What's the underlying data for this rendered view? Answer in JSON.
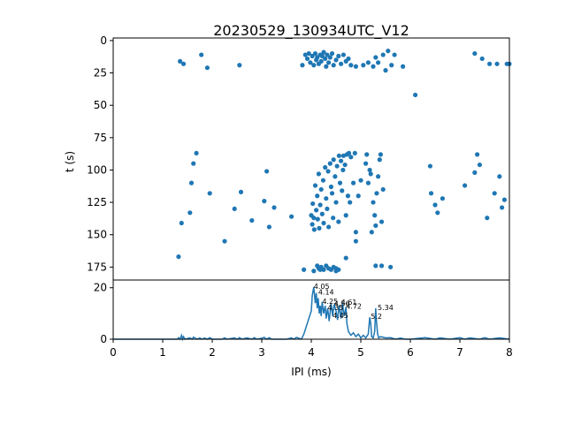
{
  "chart_data": [
    {
      "type": "scatter",
      "title": "20230529_130934UTC_V12",
      "xlabel": "",
      "ylabel": "t (s)",
      "xlim": [
        0,
        8
      ],
      "ylim": [
        185,
        -2
      ],
      "y_inverted": true,
      "y_ticks": [
        0,
        25,
        50,
        75,
        100,
        125,
        150,
        175
      ],
      "y_tick_labels": [
        "0",
        "25",
        "50",
        "75",
        "100",
        "125",
        "150",
        "175"
      ],
      "x_ticks_shown": false,
      "grid": false,
      "color": "#1f77b4",
      "points": [
        [
          1.35,
          16
        ],
        [
          1.42,
          18
        ],
        [
          1.78,
          11
        ],
        [
          1.9,
          21
        ],
        [
          2.55,
          19
        ],
        [
          3.82,
          19
        ],
        [
          3.88,
          11
        ],
        [
          3.92,
          14
        ],
        [
          3.95,
          10
        ],
        [
          3.98,
          17
        ],
        [
          4.02,
          12
        ],
        [
          4.05,
          19
        ],
        [
          4.08,
          10
        ],
        [
          4.1,
          15
        ],
        [
          4.12,
          13
        ],
        [
          4.15,
          18
        ],
        [
          4.18,
          11
        ],
        [
          4.2,
          16
        ],
        [
          4.22,
          12
        ],
        [
          4.25,
          9
        ],
        [
          4.28,
          14
        ],
        [
          4.3,
          20
        ],
        [
          4.32,
          11
        ],
        [
          4.35,
          17
        ],
        [
          4.38,
          13
        ],
        [
          4.42,
          10
        ],
        [
          4.45,
          19
        ],
        [
          4.5,
          15
        ],
        [
          4.55,
          12
        ],
        [
          4.6,
          18
        ],
        [
          4.65,
          11
        ],
        [
          4.7,
          16
        ],
        [
          4.75,
          14
        ],
        [
          4.8,
          19
        ],
        [
          4.9,
          20
        ],
        [
          5.05,
          19
        ],
        [
          5.15,
          17
        ],
        [
          5.25,
          20
        ],
        [
          5.3,
          13
        ],
        [
          5.35,
          17
        ],
        [
          5.45,
          11
        ],
        [
          5.5,
          23
        ],
        [
          5.55,
          8
        ],
        [
          5.62,
          19
        ],
        [
          5.68,
          11
        ],
        [
          5.85,
          20
        ],
        [
          6.1,
          42
        ],
        [
          7.3,
          10
        ],
        [
          7.45,
          14
        ],
        [
          7.6,
          18
        ],
        [
          7.75,
          18
        ],
        [
          7.95,
          18
        ],
        [
          8.0,
          18
        ],
        [
          1.32,
          167
        ],
        [
          1.38,
          141
        ],
        [
          1.55,
          133
        ],
        [
          1.58,
          110
        ],
        [
          1.62,
          95
        ],
        [
          1.68,
          87
        ],
        [
          1.95,
          118
        ],
        [
          2.25,
          155
        ],
        [
          2.45,
          130
        ],
        [
          2.58,
          117
        ],
        [
          2.8,
          139
        ],
        [
          3.05,
          124
        ],
        [
          3.1,
          101
        ],
        [
          3.15,
          144
        ],
        [
          3.25,
          129
        ],
        [
          3.6,
          136
        ],
        [
          3.85,
          177
        ],
        [
          4.0,
          135
        ],
        [
          4.02,
          142
        ],
        [
          4.03,
          126
        ],
        [
          4.05,
          137
        ],
        [
          4.06,
          146
        ],
        [
          4.08,
          112
        ],
        [
          4.1,
          131
        ],
        [
          4.12,
          120
        ],
        [
          4.13,
          138
        ],
        [
          4.15,
          103
        ],
        [
          4.16,
          145
        ],
        [
          4.18,
          127
        ],
        [
          4.2,
          115
        ],
        [
          4.22,
          134
        ],
        [
          4.24,
          108
        ],
        [
          4.25,
          141
        ],
        [
          4.28,
          98
        ],
        [
          4.3,
          122
        ],
        [
          4.32,
          130
        ],
        [
          4.34,
          101
        ],
        [
          4.35,
          144
        ],
        [
          4.38,
          95
        ],
        [
          4.4,
          113
        ],
        [
          4.42,
          118
        ],
        [
          4.44,
          137
        ],
        [
          4.45,
          92
        ],
        [
          4.48,
          105
        ],
        [
          4.5,
          125
        ],
        [
          4.52,
          97
        ],
        [
          4.55,
          140
        ],
        [
          4.56,
          89
        ],
        [
          4.58,
          110
        ],
        [
          4.6,
          93
        ],
        [
          4.62,
          116
        ],
        [
          4.64,
          100
        ],
        [
          4.65,
          89
        ],
        [
          4.68,
          96
        ],
        [
          4.7,
          135
        ],
        [
          4.72,
          88
        ],
        [
          4.74,
          120
        ],
        [
          4.76,
          87
        ],
        [
          4.78,
          125
        ],
        [
          4.8,
          90
        ],
        [
          4.85,
          110
        ],
        [
          4.88,
          87
        ],
        [
          4.9,
          155
        ],
        [
          4.05,
          178
        ],
        [
          4.12,
          174
        ],
        [
          4.15,
          176
        ],
        [
          4.18,
          177
        ],
        [
          4.2,
          175
        ],
        [
          4.25,
          177
        ],
        [
          4.3,
          174
        ],
        [
          4.35,
          176
        ],
        [
          4.4,
          177
        ],
        [
          4.45,
          175
        ],
        [
          4.5,
          176
        ],
        [
          4.55,
          177
        ],
        [
          4.9,
          148
        ],
        [
          4.95,
          120
        ],
        [
          5.0,
          108
        ],
        [
          5.1,
          95
        ],
        [
          5.12,
          88
        ],
        [
          5.15,
          110
        ],
        [
          5.18,
          100
        ],
        [
          5.2,
          103
        ],
        [
          5.22,
          148
        ],
        [
          5.25,
          125
        ],
        [
          5.28,
          135
        ],
        [
          5.3,
          143
        ],
        [
          5.32,
          118
        ],
        [
          5.35,
          105
        ],
        [
          5.38,
          92
        ],
        [
          5.4,
          88
        ],
        [
          5.42,
          140
        ],
        [
          5.45,
          115
        ],
        [
          5.3,
          174
        ],
        [
          5.42,
          174
        ],
        [
          5.6,
          175
        ],
        [
          4.5,
          178
        ],
        [
          4.7,
          168
        ],
        [
          6.4,
          97
        ],
        [
          6.42,
          118
        ],
        [
          6.5,
          127
        ],
        [
          6.55,
          133
        ],
        [
          6.65,
          122
        ],
        [
          7.1,
          112
        ],
        [
          7.3,
          102
        ],
        [
          7.35,
          88
        ],
        [
          7.4,
          96
        ],
        [
          7.55,
          137
        ],
        [
          7.7,
          118
        ],
        [
          7.8,
          105
        ],
        [
          7.85,
          129
        ],
        [
          7.9,
          123
        ]
      ]
    },
    {
      "type": "line",
      "xlabel": "IPI (ms)",
      "ylabel": "",
      "xlim": [
        0,
        8
      ],
      "ylim": [
        0,
        23
      ],
      "x_ticks": [
        0,
        1,
        2,
        3,
        4,
        5,
        6,
        7,
        8
      ],
      "x_tick_labels": [
        "0",
        "1",
        "2",
        "3",
        "4",
        "5",
        "6",
        "7",
        "8"
      ],
      "y_ticks": [
        0,
        20
      ],
      "y_tick_labels": [
        "0",
        "20"
      ],
      "color": "#1f77b4",
      "x": [
        0,
        1.0,
        1.3,
        1.32,
        1.35,
        1.38,
        1.4,
        1.42,
        1.45,
        1.55,
        1.6,
        1.62,
        1.7,
        1.75,
        1.78,
        1.85,
        1.9,
        1.95,
        2.0,
        2.2,
        2.25,
        2.3,
        2.45,
        2.5,
        2.55,
        2.6,
        2.7,
        2.8,
        2.85,
        2.9,
        3.0,
        3.05,
        3.1,
        3.15,
        3.2,
        3.3,
        3.5,
        3.6,
        3.65,
        3.7,
        3.8,
        3.85,
        3.9,
        3.95,
        4.0,
        4.02,
        4.05,
        4.08,
        4.1,
        4.12,
        4.14,
        4.16,
        4.18,
        4.2,
        4.22,
        4.25,
        4.28,
        4.3,
        4.33,
        4.36,
        4.4,
        4.43,
        4.46,
        4.5,
        4.53,
        4.56,
        4.6,
        4.63,
        4.66,
        4.7,
        4.72,
        4.75,
        4.8,
        4.85,
        4.9,
        4.95,
        5.0,
        5.05,
        5.1,
        5.15,
        5.18,
        5.2,
        5.22,
        5.25,
        5.28,
        5.3,
        5.32,
        5.34,
        5.36,
        5.4,
        5.5,
        5.6,
        5.7,
        5.8,
        5.9,
        6.0,
        6.3,
        6.5,
        6.6,
        6.8,
        7.0,
        7.1,
        7.2,
        7.4,
        7.5,
        7.6,
        7.8,
        8.0
      ],
      "y": [
        0,
        0,
        0,
        0.6,
        0,
        1.5,
        0,
        1.0,
        0,
        0.5,
        0,
        0.8,
        0,
        0.5,
        0,
        0.4,
        0,
        0.6,
        0,
        0,
        0.5,
        0,
        0.5,
        0,
        0.6,
        0,
        0.5,
        0,
        0.6,
        0,
        0.4,
        0.7,
        0,
        0.6,
        0,
        0,
        0,
        0.5,
        0,
        0.7,
        0,
        2.0,
        5.0,
        8.0,
        11.0,
        17.0,
        20.3,
        14.0,
        18.0,
        12.0,
        16.0,
        10.0,
        13.0,
        9.0,
        14.5,
        10.0,
        13.0,
        8.0,
        12.0,
        7.0,
        14.0,
        9.0,
        13.5,
        11.0,
        7.5,
        13.0,
        8.0,
        14.0,
        9.0,
        12.5,
        6.0,
        3.0,
        1.5,
        2.5,
        1.0,
        2.0,
        0.5,
        1.5,
        0.5,
        2.0,
        8.5,
        6.0,
        1.0,
        0.5,
        3.0,
        12.0,
        6.0,
        2.0,
        0.5,
        1.0,
        0.5,
        0.6,
        0,
        0.4,
        0,
        0,
        0.6,
        0,
        0.5,
        0,
        0.6,
        0,
        0.5,
        0,
        0.6,
        0,
        0.5,
        0
      ],
      "annotations": [
        {
          "text": "4.05",
          "x": 4.05,
          "y": 20.3
        },
        {
          "text": "4.14",
          "x": 4.14,
          "y": 18.0
        },
        {
          "text": "4.25",
          "x": 4.22,
          "y": 14.5
        },
        {
          "text": "4.56",
          "x": 4.46,
          "y": 13.5
        },
        {
          "text": "4.61",
          "x": 4.6,
          "y": 14.0
        },
        {
          "text": "4.35",
          "x": 4.33,
          "y": 12.0
        },
        {
          "text": "4.72",
          "x": 4.7,
          "y": 12.5
        },
        {
          "text": "4.45",
          "x": 4.43,
          "y": 9.0
        },
        {
          "text": "5.34",
          "x": 5.34,
          "y": 12.0
        },
        {
          "text": "5.2",
          "x": 5.2,
          "y": 8.5
        }
      ]
    }
  ]
}
